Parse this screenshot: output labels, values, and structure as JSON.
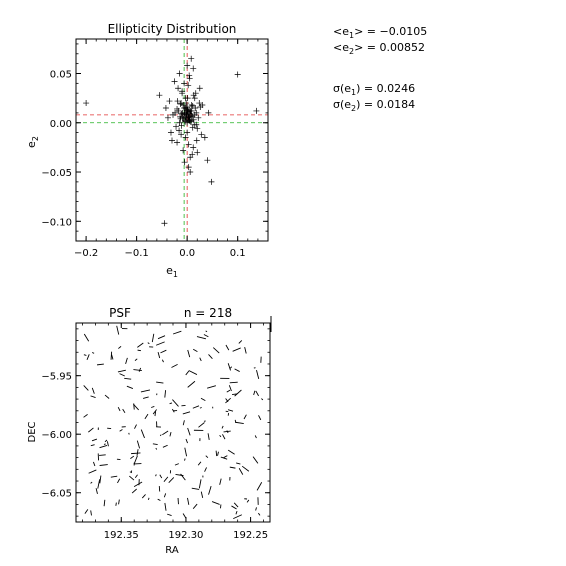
{
  "chart_data": [
    {
      "type": "scatter",
      "title": "Ellipticity Distribution",
      "xlabel": "e",
      "xlabel_sub": "1",
      "ylabel": "e",
      "ylabel_sub": "2",
      "xlim": [
        -0.22,
        0.16
      ],
      "ylim": [
        -0.12,
        0.085
      ],
      "xticks": [
        -0.2,
        -0.1,
        0.0,
        0.1
      ],
      "xtick_labels": [
        "−0.2",
        "−0.1",
        "0.0",
        "0.1"
      ],
      "yticks": [
        -0.1,
        -0.05,
        0.0,
        0.05
      ],
      "ytick_labels": [
        "−0.10",
        "−0.05",
        "0.00",
        "0.05"
      ],
      "marker": "plus",
      "reference_lines": {
        "red_x": 0.0,
        "red_y": 0.008,
        "green_x": -0.006,
        "green_y": 0.0,
        "red_color": "#e03030",
        "green_color": "#20b020"
      },
      "x": [
        -0.2,
        0.137,
        0.1,
        -0.055,
        -0.045,
        0.048,
        -0.035,
        0.04,
        0.025,
        0.03,
        -0.032,
        -0.025,
        0.018,
        -0.02,
        0.02,
        -0.015,
        0.012,
        -0.01,
        0.008,
        0.005,
        0.0,
        -0.005,
        0.003,
        0.006,
        -0.012,
        0.015,
        -0.018,
        0.022,
        -0.028,
        0.028,
        -0.008,
        0.01,
        -0.003,
        0.002,
        0.004,
        -0.006,
        0.007,
        -0.002,
        0.001,
        -0.004,
        0.009,
        -0.009,
        0.011,
        -0.011,
        0.013,
        -0.013,
        0.016,
        -0.016,
        0.019,
        -0.019,
        0.0,
        0.002,
        -0.001,
        0.004,
        -0.003,
        0.006,
        -0.005,
        0.003,
        -0.007,
        0.008,
        0.001,
        -0.002,
        0.005,
        -0.004,
        0.0,
        0.014,
        -0.014,
        0.017,
        -0.017,
        0.024,
        -0.022,
        0.035,
        -0.038,
        0.042,
        -0.042,
        0.012,
        -0.01,
        0.006,
        -0.006,
        0.003,
        -0.003,
        0.0,
        0.008,
        -0.008,
        0.01,
        0.004,
        -0.012,
        0.015,
        -0.015,
        0.02,
        -0.024,
        0.026,
        -0.03,
        0.005,
        0.002,
        -0.002,
        0.0,
        0.001,
        -0.001,
        0.003,
        -0.004,
        0.007,
        -0.006,
        0.009,
        -0.009,
        0.011,
        -0.011,
        0.018,
        -0.02,
        0.013,
        -0.013
      ],
      "y": [
        0.02,
        0.012,
        0.049,
        0.028,
        -0.102,
        -0.06,
        0.022,
        -0.038,
        0.035,
        0.018,
        -0.01,
        0.042,
        0.01,
        -0.02,
        -0.03,
        0.05,
        0.055,
        0.03,
        0.065,
        0.045,
        0.058,
        -0.04,
        -0.045,
        -0.05,
        0.02,
        0.025,
        0.035,
        0.005,
        0.008,
        -0.012,
        -0.028,
        -0.032,
        -0.015,
        0.038,
        0.048,
        0.015,
        0.012,
        0.02,
        0.025,
        0.002,
        0.018,
        0.01,
        -0.005,
        -0.003,
        0.028,
        0.004,
        0.015,
        -0.008,
        -0.018,
        0.022,
        0.0,
        0.005,
        0.008,
        0.003,
        0.006,
        0.009,
        0.01,
        0.011,
        0.004,
        0.007,
        0.012,
        0.014,
        0.002,
        0.001,
        0.016,
        -0.002,
        0.006,
        0.03,
        0.012,
        0.02,
        -0.004,
        -0.015,
        0.005,
        0.01,
        0.015,
        -0.025,
        0.032,
        -0.035,
        0.04,
        -0.022,
        0.025,
        -0.01,
        0.002,
        0.018,
        0.006,
        0.013,
        -0.012,
        0.008,
        0.0,
        -0.006,
        0.01,
        0.016,
        -0.018,
        0.007,
        0.003,
        0.009,
        0.011,
        0.013,
        0.004,
        0.006,
        0.015,
        0.001,
        0.008,
        0.012,
        0.005,
        0.017,
        0.009,
        -0.002,
        0.014,
        0.003,
        0.019
      ]
    },
    {
      "type": "vector_field",
      "title": "PSF",
      "annotation": "n = 218",
      "xlabel": "RA",
      "ylabel": "DEC",
      "xlim": [
        192.385,
        192.235
      ],
      "ylim": [
        -6.075,
        -5.905
      ],
      "xticks": [
        192.35,
        192.3,
        192.25
      ],
      "xtick_labels": [
        "192.35",
        "192.30",
        "192.25"
      ],
      "yticks": [
        -5.95,
        -6.0,
        -6.05
      ],
      "ytick_labels": [
        "−5.95",
        "−6.00",
        "−6.05"
      ],
      "scale_bar_length": 0.01,
      "n": 218
    }
  ],
  "stats": {
    "mean_e1_label": "<e",
    "mean_e1_sub": "1",
    "mean_e1_rest": "> = −0.0105",
    "mean_e2_label": "<e",
    "mean_e2_sub": "2",
    "mean_e2_rest": "> = 0.00852",
    "sigma_e1_label": "σ(e",
    "sigma_e1_sub": "1",
    "sigma_e1_rest": ") = 0.0246",
    "sigma_e2_label": "σ(e",
    "sigma_e2_sub": "2",
    "sigma_e2_rest": ") = 0.0184"
  }
}
